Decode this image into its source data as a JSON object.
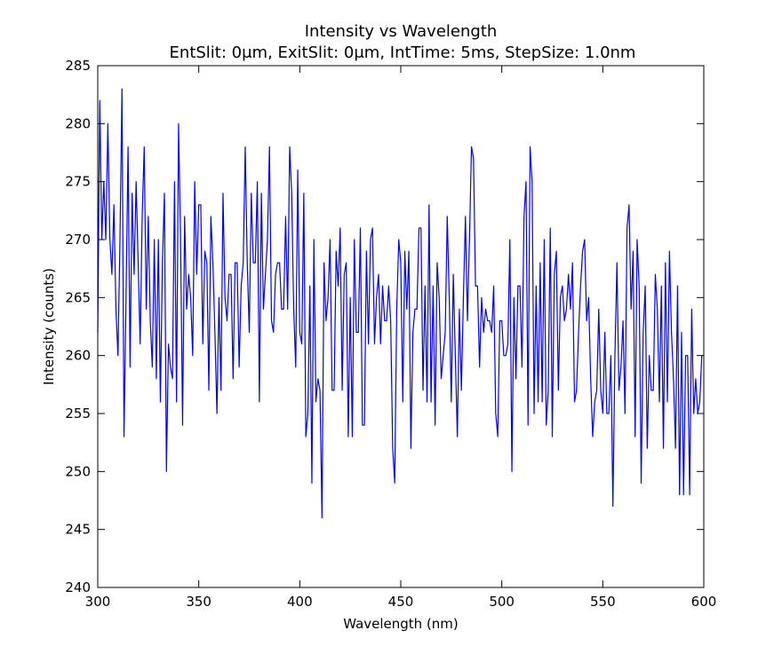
{
  "chart_data": {
    "type": "line",
    "title": "Intensity vs Wavelength",
    "subtitle": "EntSlit: 0μm, ExitSlit: 0μm, IntTime: 5ms, StepSize: 1.0nm",
    "xlabel": "Wavelength (nm)",
    "ylabel": "Intensity (counts)",
    "xlim": [
      300,
      600
    ],
    "ylim": [
      240,
      285
    ],
    "xticks": [
      300,
      350,
      400,
      450,
      500,
      550,
      600
    ],
    "yticks": [
      240,
      245,
      250,
      255,
      260,
      265,
      270,
      275,
      280,
      285
    ],
    "grid": false,
    "series": [
      {
        "color": "#0000ff",
        "x_start": 300,
        "x_step": 1.0,
        "y": [
          262,
          282,
          270,
          275,
          270,
          280,
          270,
          267,
          273,
          264,
          260,
          270,
          283,
          253,
          265,
          278,
          259,
          274,
          267,
          275,
          268,
          261,
          272,
          278,
          264,
          272,
          263,
          259,
          270,
          258,
          270,
          256,
          268,
          274,
          250,
          261,
          259,
          258,
          275,
          256,
          280,
          270,
          254,
          272,
          264,
          267,
          265,
          260,
          275,
          267,
          273,
          273,
          261,
          269,
          268,
          257,
          272,
          268,
          262,
          255,
          265,
          257,
          274,
          265,
          263,
          267,
          267,
          258,
          268,
          268,
          259,
          266,
          268,
          278,
          268,
          262,
          274,
          268,
          268,
          275,
          256,
          274,
          264,
          267,
          270,
          278,
          263,
          262,
          267,
          268,
          268,
          264,
          264,
          272,
          264,
          278,
          274,
          264,
          259,
          276,
          262,
          261,
          274,
          253,
          255,
          266,
          249,
          270,
          256,
          258,
          257,
          246,
          268,
          263,
          265,
          270,
          257,
          257,
          269,
          266,
          271,
          257,
          267,
          268,
          253,
          265,
          253,
          270,
          262,
          262,
          271,
          254,
          254,
          269,
          261,
          270,
          271,
          261,
          265,
          267,
          261,
          266,
          263,
          263,
          266,
          263,
          252,
          249,
          264,
          270,
          268,
          256,
          269,
          264,
          269,
          252,
          262,
          264,
          264,
          271,
          271,
          257,
          266,
          256,
          273,
          256,
          266,
          254,
          268,
          265,
          258,
          260,
          262,
          272,
          265,
          256,
          267,
          260,
          253,
          264,
          257,
          265,
          272,
          263,
          270,
          278,
          277,
          266,
          266,
          259,
          265,
          262,
          264,
          263,
          263,
          262,
          266,
          255,
          253,
          263,
          263,
          260,
          260,
          261,
          270,
          250,
          265,
          258,
          266,
          266,
          259,
          272,
          275,
          254,
          278,
          275,
          255,
          266,
          256,
          268,
          256,
          270,
          254,
          257,
          271,
          253,
          267,
          269,
          257,
          265,
          266,
          263,
          264,
          267,
          264,
          268,
          256,
          257,
          262,
          266,
          269,
          270,
          263,
          265,
          258,
          253,
          256,
          257,
          264,
          257,
          255,
          262,
          255,
          255,
          260,
          247,
          260,
          268,
          257,
          259,
          263,
          255,
          271,
          273,
          264,
          269,
          253,
          270,
          266,
          249,
          262,
          266,
          252,
          260,
          257,
          257,
          267,
          264,
          256,
          266,
          252,
          268,
          256,
          269,
          262,
          258,
          252,
          266,
          248,
          262,
          248,
          260,
          260,
          248,
          264,
          255,
          258,
          255,
          256,
          260
        ]
      }
    ]
  }
}
